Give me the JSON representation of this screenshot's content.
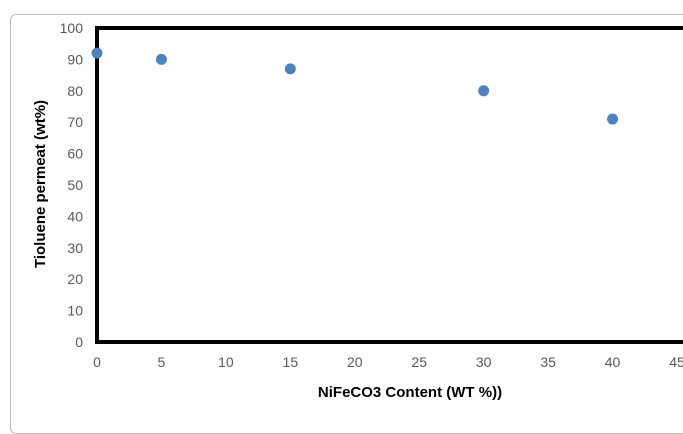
{
  "chart_data": {
    "type": "scatter",
    "title": "",
    "xlabel": "NiFeCO3 Content (WT %))",
    "ylabel": "Tioluene permeat (wt%)",
    "xlim": [
      0,
      45
    ],
    "ylim": [
      0,
      100
    ],
    "x_ticks": [
      0,
      5,
      10,
      15,
      20,
      25,
      30,
      35,
      40,
      45
    ],
    "y_ticks": [
      0,
      10,
      20,
      30,
      40,
      50,
      60,
      70,
      80,
      90,
      100
    ],
    "grid": false,
    "legend": "none",
    "series": [
      {
        "color": "#4f81bd",
        "points": [
          {
            "x": 0,
            "y": 92
          },
          {
            "x": 5,
            "y": 90
          },
          {
            "x": 15,
            "y": 87
          },
          {
            "x": 30,
            "y": 80
          },
          {
            "x": 40,
            "y": 71
          }
        ]
      }
    ]
  }
}
